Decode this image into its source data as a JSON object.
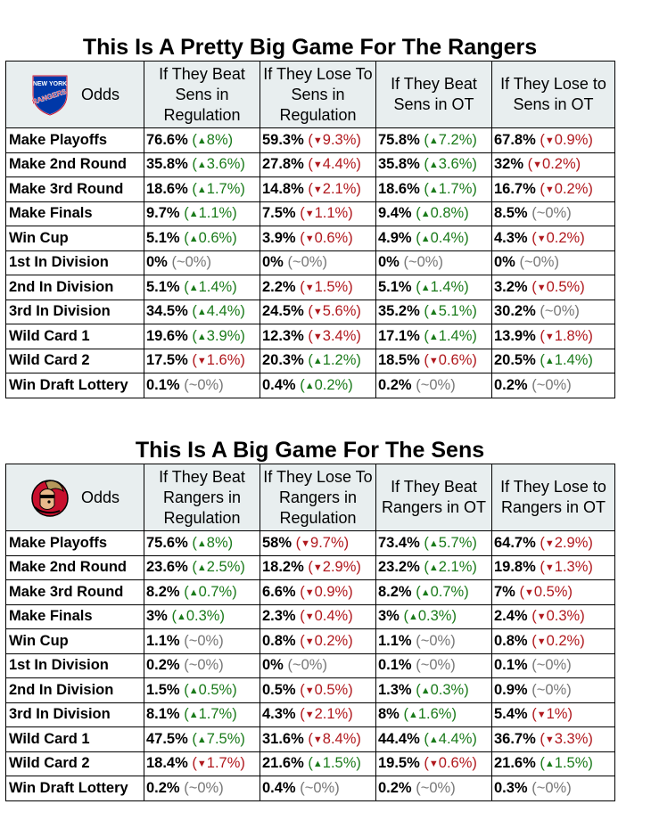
{
  "rangers": {
    "title": "This Is A Pretty Big Game For The Rangers",
    "corner_label": "Odds",
    "logo": "new-york-rangers-logo",
    "logo_text": [
      "NEW YORK",
      "RANGERS"
    ],
    "headers": [
      "If They Beat Sens in Regulation",
      "If They Lose To Sens in Regulation",
      "If They Beat Sens in OT",
      "If They Lose to Sens in OT"
    ],
    "rows": [
      {
        "label": "Make Playoffs",
        "cells": [
          {
            "v": "76.6%",
            "c": "8%",
            "d": "up"
          },
          {
            "v": "59.3%",
            "c": "9.3%",
            "d": "down"
          },
          {
            "v": "75.8%",
            "c": "7.2%",
            "d": "up"
          },
          {
            "v": "67.8%",
            "c": "0.9%",
            "d": "down"
          }
        ]
      },
      {
        "label": "Make 2nd Round",
        "cells": [
          {
            "v": "35.8%",
            "c": "3.6%",
            "d": "up"
          },
          {
            "v": "27.8%",
            "c": "4.4%",
            "d": "down"
          },
          {
            "v": "35.8%",
            "c": "3.6%",
            "d": "up"
          },
          {
            "v": "32%",
            "c": "0.2%",
            "d": "down"
          }
        ]
      },
      {
        "label": "Make 3rd Round",
        "cells": [
          {
            "v": "18.6%",
            "c": "1.7%",
            "d": "up"
          },
          {
            "v": "14.8%",
            "c": "2.1%",
            "d": "down"
          },
          {
            "v": "18.6%",
            "c": "1.7%",
            "d": "up"
          },
          {
            "v": "16.7%",
            "c": "0.2%",
            "d": "down"
          }
        ]
      },
      {
        "label": "Make Finals",
        "cells": [
          {
            "v": "9.7%",
            "c": "1.1%",
            "d": "up"
          },
          {
            "v": "7.5%",
            "c": "1.1%",
            "d": "down"
          },
          {
            "v": "9.4%",
            "c": "0.8%",
            "d": "up"
          },
          {
            "v": "8.5%",
            "c": "~0%",
            "d": "flat"
          }
        ]
      },
      {
        "label": "Win Cup",
        "cells": [
          {
            "v": "5.1%",
            "c": "0.6%",
            "d": "up"
          },
          {
            "v": "3.9%",
            "c": "0.6%",
            "d": "down"
          },
          {
            "v": "4.9%",
            "c": "0.4%",
            "d": "up"
          },
          {
            "v": "4.3%",
            "c": "0.2%",
            "d": "down"
          }
        ]
      },
      {
        "label": "1st In Division",
        "cells": [
          {
            "v": "0%",
            "c": "~0%",
            "d": "flat"
          },
          {
            "v": "0%",
            "c": "~0%",
            "d": "flat"
          },
          {
            "v": "0%",
            "c": "~0%",
            "d": "flat"
          },
          {
            "v": "0%",
            "c": "~0%",
            "d": "flat"
          }
        ]
      },
      {
        "label": "2nd In Division",
        "cells": [
          {
            "v": "5.1%",
            "c": "1.4%",
            "d": "up"
          },
          {
            "v": "2.2%",
            "c": "1.5%",
            "d": "down"
          },
          {
            "v": "5.1%",
            "c": "1.4%",
            "d": "up"
          },
          {
            "v": "3.2%",
            "c": "0.5%",
            "d": "down"
          }
        ]
      },
      {
        "label": "3rd In Division",
        "cells": [
          {
            "v": "34.5%",
            "c": "4.4%",
            "d": "up"
          },
          {
            "v": "24.5%",
            "c": "5.6%",
            "d": "down"
          },
          {
            "v": "35.2%",
            "c": "5.1%",
            "d": "up"
          },
          {
            "v": "30.2%",
            "c": "~0%",
            "d": "flat"
          }
        ]
      },
      {
        "label": "Wild Card 1",
        "cells": [
          {
            "v": "19.6%",
            "c": "3.9%",
            "d": "up"
          },
          {
            "v": "12.3%",
            "c": "3.4%",
            "d": "down"
          },
          {
            "v": "17.1%",
            "c": "1.4%",
            "d": "up"
          },
          {
            "v": "13.9%",
            "c": "1.8%",
            "d": "down"
          }
        ]
      },
      {
        "label": "Wild Card 2",
        "cells": [
          {
            "v": "17.5%",
            "c": "1.6%",
            "d": "down"
          },
          {
            "v": "20.3%",
            "c": "1.2%",
            "d": "up"
          },
          {
            "v": "18.5%",
            "c": "0.6%",
            "d": "down"
          },
          {
            "v": "20.5%",
            "c": "1.4%",
            "d": "up"
          }
        ]
      },
      {
        "label": "Win Draft Lottery",
        "cells": [
          {
            "v": "0.1%",
            "c": "~0%",
            "d": "flat"
          },
          {
            "v": "0.4%",
            "c": "0.2%",
            "d": "up"
          },
          {
            "v": "0.2%",
            "c": "~0%",
            "d": "flat"
          },
          {
            "v": "0.2%",
            "c": "~0%",
            "d": "flat"
          }
        ]
      }
    ]
  },
  "sens": {
    "title": "This Is A Big Game For The Sens",
    "corner_label": "Odds",
    "logo": "ottawa-senators-logo",
    "headers": [
      "If They Beat Rangers in Regulation",
      "If They Lose To Rangers in Regulation",
      "If They Beat Rangers in OT",
      "If They Lose to Rangers in OT"
    ],
    "rows": [
      {
        "label": "Make Playoffs",
        "cells": [
          {
            "v": "75.6%",
            "c": "8%",
            "d": "up"
          },
          {
            "v": "58%",
            "c": "9.7%",
            "d": "down"
          },
          {
            "v": "73.4%",
            "c": "5.7%",
            "d": "up"
          },
          {
            "v": "64.7%",
            "c": "2.9%",
            "d": "down"
          }
        ]
      },
      {
        "label": "Make 2nd Round",
        "cells": [
          {
            "v": "23.6%",
            "c": "2.5%",
            "d": "up"
          },
          {
            "v": "18.2%",
            "c": "2.9%",
            "d": "down"
          },
          {
            "v": "23.2%",
            "c": "2.1%",
            "d": "up"
          },
          {
            "v": "19.8%",
            "c": "1.3%",
            "d": "down"
          }
        ]
      },
      {
        "label": "Make 3rd Round",
        "cells": [
          {
            "v": "8.2%",
            "c": "0.7%",
            "d": "up"
          },
          {
            "v": "6.6%",
            "c": "0.9%",
            "d": "down"
          },
          {
            "v": "8.2%",
            "c": "0.7%",
            "d": "up"
          },
          {
            "v": "7%",
            "c": "0.5%",
            "d": "down"
          }
        ]
      },
      {
        "label": "Make Finals",
        "cells": [
          {
            "v": "3%",
            "c": "0.3%",
            "d": "up"
          },
          {
            "v": "2.3%",
            "c": "0.4%",
            "d": "down"
          },
          {
            "v": "3%",
            "c": "0.3%",
            "d": "up"
          },
          {
            "v": "2.4%",
            "c": "0.3%",
            "d": "down"
          }
        ]
      },
      {
        "label": "Win Cup",
        "cells": [
          {
            "v": "1.1%",
            "c": "~0%",
            "d": "flat"
          },
          {
            "v": "0.8%",
            "c": "0.2%",
            "d": "down"
          },
          {
            "v": "1.1%",
            "c": "~0%",
            "d": "flat"
          },
          {
            "v": "0.8%",
            "c": "0.2%",
            "d": "down"
          }
        ]
      },
      {
        "label": "1st In Division",
        "cells": [
          {
            "v": "0.2%",
            "c": "~0%",
            "d": "flat"
          },
          {
            "v": "0%",
            "c": "~0%",
            "d": "flat"
          },
          {
            "v": "0.1%",
            "c": "~0%",
            "d": "flat"
          },
          {
            "v": "0.1%",
            "c": "~0%",
            "d": "flat"
          }
        ]
      },
      {
        "label": "2nd In Division",
        "cells": [
          {
            "v": "1.5%",
            "c": "0.5%",
            "d": "up"
          },
          {
            "v": "0.5%",
            "c": "0.5%",
            "d": "down"
          },
          {
            "v": "1.3%",
            "c": "0.3%",
            "d": "up"
          },
          {
            "v": "0.9%",
            "c": "~0%",
            "d": "flat"
          }
        ]
      },
      {
        "label": "3rd In Division",
        "cells": [
          {
            "v": "8.1%",
            "c": "1.7%",
            "d": "up"
          },
          {
            "v": "4.3%",
            "c": "2.1%",
            "d": "down"
          },
          {
            "v": "8%",
            "c": "1.6%",
            "d": "up"
          },
          {
            "v": "5.4%",
            "c": "1%",
            "d": "down"
          }
        ]
      },
      {
        "label": "Wild Card 1",
        "cells": [
          {
            "v": "47.5%",
            "c": "7.5%",
            "d": "up"
          },
          {
            "v": "31.6%",
            "c": "8.4%",
            "d": "down"
          },
          {
            "v": "44.4%",
            "c": "4.4%",
            "d": "up"
          },
          {
            "v": "36.7%",
            "c": "3.3%",
            "d": "down"
          }
        ]
      },
      {
        "label": "Wild Card 2",
        "cells": [
          {
            "v": "18.4%",
            "c": "1.7%",
            "d": "down"
          },
          {
            "v": "21.6%",
            "c": "1.5%",
            "d": "up"
          },
          {
            "v": "19.5%",
            "c": "0.6%",
            "d": "down"
          },
          {
            "v": "21.6%",
            "c": "1.5%",
            "d": "up"
          }
        ]
      },
      {
        "label": "Win Draft Lottery",
        "cells": [
          {
            "v": "0.2%",
            "c": "~0%",
            "d": "flat"
          },
          {
            "v": "0.4%",
            "c": "~0%",
            "d": "flat"
          },
          {
            "v": "0.2%",
            "c": "~0%",
            "d": "flat"
          },
          {
            "v": "0.3%",
            "c": "~0%",
            "d": "flat"
          }
        ]
      }
    ]
  },
  "colors": {
    "up": "#1a7a1a",
    "down": "#b0181d",
    "flat": "#777777",
    "header_bg": "#e8eeef"
  }
}
